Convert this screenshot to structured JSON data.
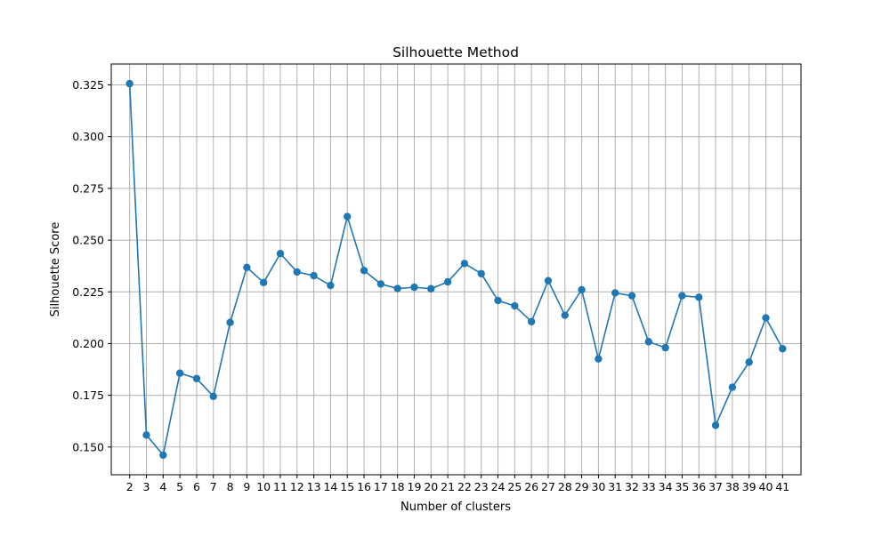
{
  "chart_data": {
    "type": "line",
    "title": "Silhouette Method",
    "xlabel": "Number of clusters",
    "ylabel": "Silhouette Score",
    "x": [
      2,
      3,
      4,
      5,
      6,
      7,
      8,
      9,
      10,
      11,
      12,
      13,
      14,
      15,
      16,
      17,
      18,
      19,
      20,
      21,
      22,
      23,
      24,
      25,
      26,
      27,
      28,
      29,
      30,
      31,
      32,
      33,
      34,
      35,
      36,
      37,
      38,
      39,
      40,
      41
    ],
    "series": [
      {
        "values": [
          0.3256,
          0.1558,
          0.1461,
          0.1857,
          0.1831,
          0.1745,
          0.2102,
          0.2368,
          0.2295,
          0.2435,
          0.2346,
          0.2328,
          0.2281,
          0.2614,
          0.2353,
          0.2288,
          0.2266,
          0.2272,
          0.2265,
          0.2298,
          0.2387,
          0.2338,
          0.2208,
          0.2182,
          0.2106,
          0.2304,
          0.2137,
          0.226,
          0.1926,
          0.2245,
          0.2231,
          0.2009,
          0.198,
          0.2231,
          0.2224,
          0.1605,
          0.1789,
          0.191,
          0.2124,
          0.1975
        ],
        "color": "#1f77b4",
        "marker": "circle"
      }
    ],
    "xticks": [
      "2",
      "3",
      "4",
      "5",
      "6",
      "7",
      "8",
      "9",
      "10",
      "11",
      "12",
      "13",
      "14",
      "15",
      "16",
      "17",
      "18",
      "19",
      "20",
      "21",
      "22",
      "23",
      "24",
      "25",
      "26",
      "27",
      "28",
      "29",
      "30",
      "31",
      "32",
      "33",
      "34",
      "35",
      "36",
      "37",
      "38",
      "39",
      "40",
      "41"
    ],
    "yticks": [
      0.15,
      0.175,
      0.2,
      0.225,
      0.25,
      0.275,
      0.3,
      0.325
    ],
    "ytick_labels": [
      "0.150",
      "0.175",
      "0.200",
      "0.225",
      "0.250",
      "0.275",
      "0.300",
      "0.325"
    ],
    "xlim": [
      0.9,
      42.1
    ],
    "ylim": [
      0.1366,
      0.3351
    ],
    "grid": true,
    "grid_color": "#b0b0b0"
  }
}
